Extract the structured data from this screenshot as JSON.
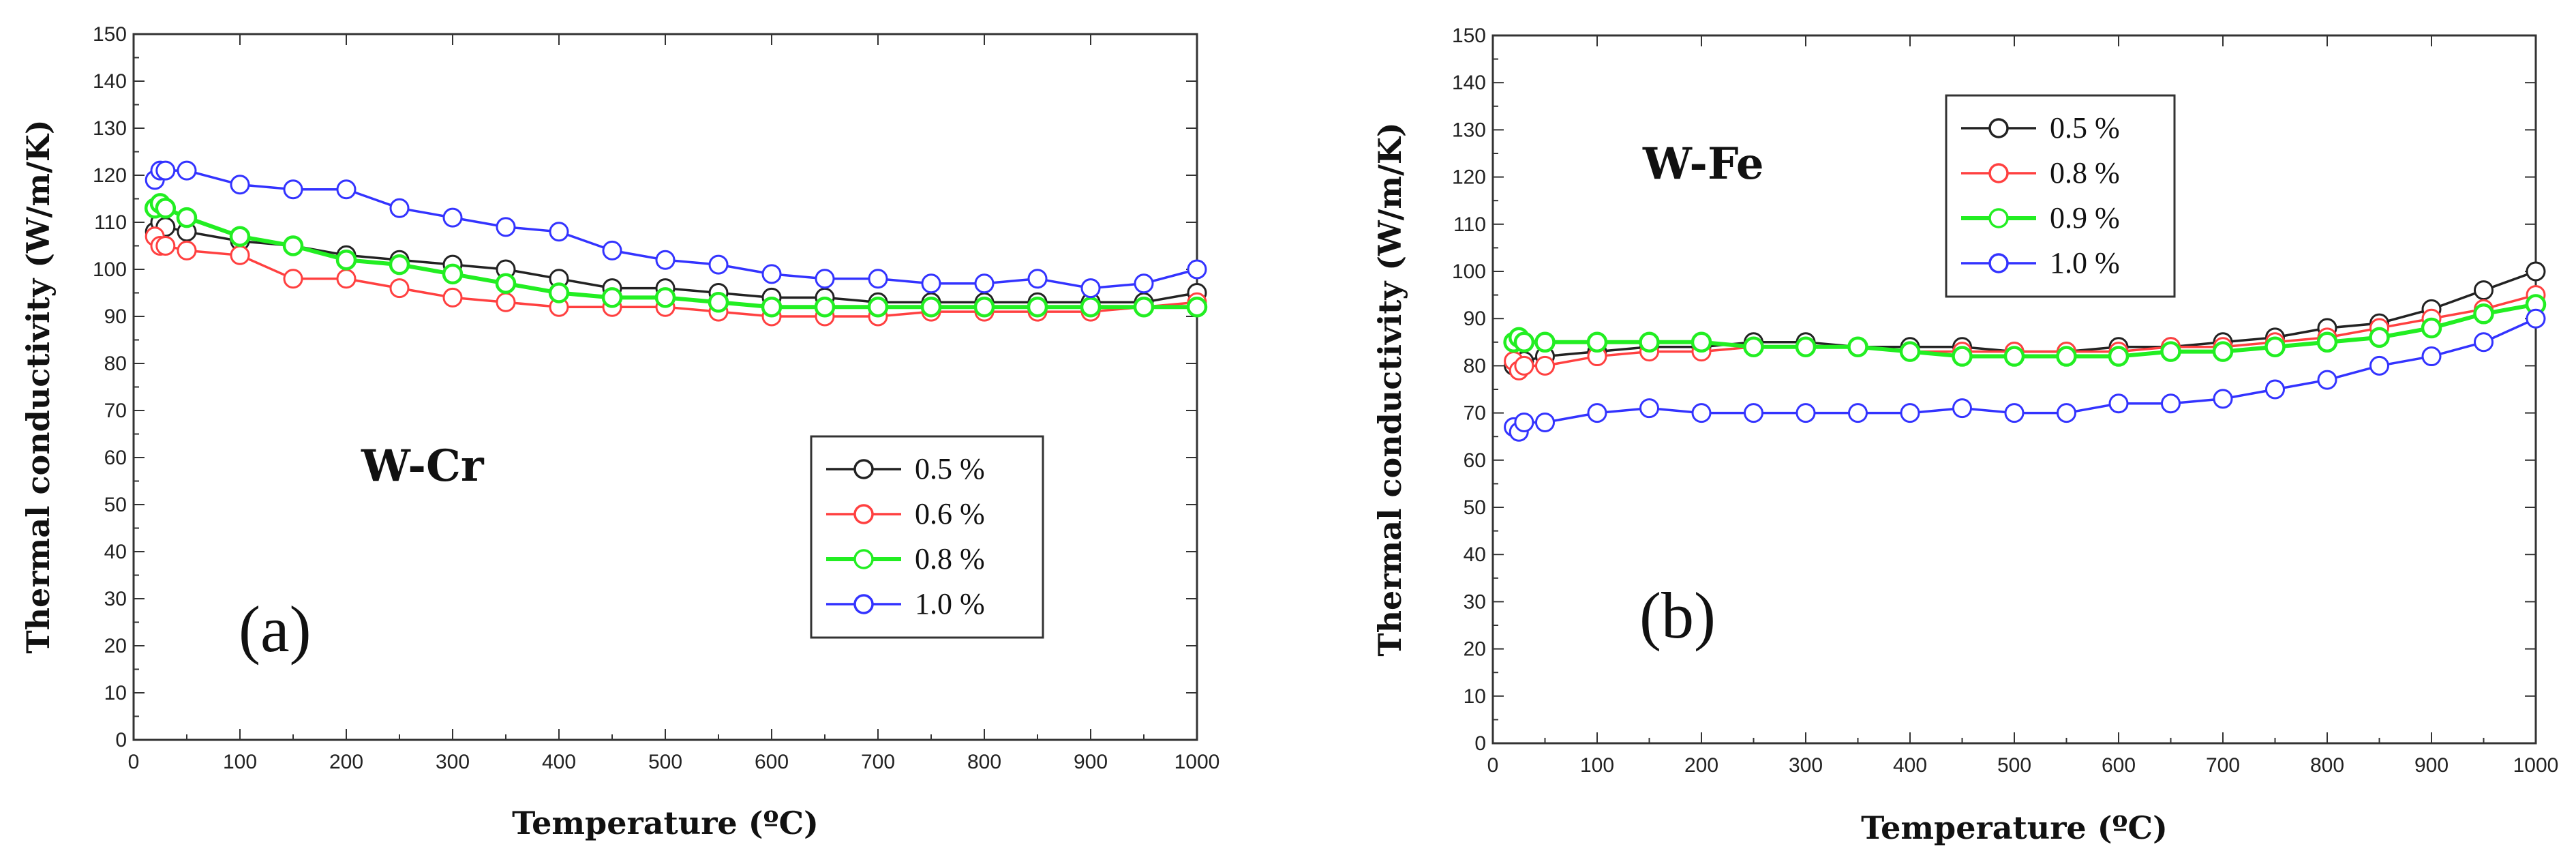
{
  "chart_data": [
    {
      "type": "line",
      "panel_label": "(a)",
      "alloy_label": "W-Cr",
      "xlabel": "Temperature (ºC)",
      "ylabel": "Thermal conductivity (W/m/K)",
      "xlim": [
        0,
        1000
      ],
      "ylim": [
        0,
        150
      ],
      "xticks": [
        "0",
        "100",
        "200",
        "300",
        "400",
        "500",
        "600",
        "700",
        "800",
        "900",
        "1000"
      ],
      "yticks": [
        "0",
        "10",
        "20",
        "30",
        "40",
        "50",
        "60",
        "70",
        "80",
        "90",
        "100",
        "110",
        "120",
        "130",
        "140",
        "150"
      ],
      "legend_position": "center-right",
      "series": [
        {
          "name": "0.5 %",
          "color": "#222222",
          "x": [
            20,
            25,
            30,
            50,
            100,
            150,
            200,
            250,
            300,
            350,
            400,
            450,
            500,
            550,
            600,
            650,
            700,
            750,
            800,
            850,
            900,
            950,
            1000
          ],
          "y": [
            108,
            110,
            109,
            108,
            106,
            105,
            103,
            102,
            101,
            100,
            98,
            96,
            96,
            95,
            94,
            94,
            93,
            93,
            93,
            93,
            93,
            93,
            95
          ]
        },
        {
          "name": "0.6 %",
          "color": "#ff4040",
          "x": [
            20,
            25,
            30,
            50,
            100,
            150,
            200,
            250,
            300,
            350,
            400,
            450,
            500,
            550,
            600,
            650,
            700,
            750,
            800,
            850,
            900,
            950,
            1000
          ],
          "y": [
            107,
            105,
            105,
            104,
            103,
            98,
            98,
            96,
            94,
            93,
            92,
            92,
            92,
            91,
            90,
            90,
            90,
            91,
            91,
            91,
            91,
            92,
            93
          ]
        },
        {
          "name": "0.8 %",
          "color": "#22ee22",
          "x": [
            20,
            25,
            30,
            50,
            100,
            150,
            200,
            250,
            300,
            350,
            400,
            450,
            500,
            550,
            600,
            650,
            700,
            750,
            800,
            850,
            900,
            950,
            1000
          ],
          "y": [
            113,
            114,
            113,
            111,
            107,
            105,
            102,
            101,
            99,
            97,
            95,
            94,
            94,
            93,
            92,
            92,
            92,
            92,
            92,
            92,
            92,
            92,
            92
          ]
        },
        {
          "name": "1.0 %",
          "color": "#3333ff",
          "x": [
            20,
            25,
            30,
            50,
            100,
            150,
            200,
            250,
            300,
            350,
            400,
            450,
            500,
            550,
            600,
            650,
            700,
            750,
            800,
            850,
            900,
            950,
            1000
          ],
          "y": [
            119,
            121,
            121,
            121,
            118,
            117,
            117,
            113,
            111,
            109,
            108,
            104,
            102,
            101,
            99,
            98,
            98,
            97,
            97,
            98,
            96,
            97,
            100
          ]
        }
      ]
    },
    {
      "type": "line",
      "panel_label": "(b)",
      "alloy_label": "W-Fe",
      "xlabel": "Temperature (ºC)",
      "ylabel": "Thermal conductivity (W/m/K)",
      "xlim": [
        0,
        1000
      ],
      "ylim": [
        0,
        150
      ],
      "xticks": [
        "0",
        "100",
        "200",
        "300",
        "400",
        "500",
        "600",
        "700",
        "800",
        "900",
        "1000"
      ],
      "yticks": [
        "0",
        "10",
        "20",
        "30",
        "40",
        "50",
        "60",
        "70",
        "80",
        "90",
        "100",
        "110",
        "120",
        "130",
        "140",
        "150"
      ],
      "legend_position": "top-center",
      "series": [
        {
          "name": "0.5 %",
          "color": "#222222",
          "x": [
            20,
            25,
            30,
            50,
            100,
            150,
            200,
            250,
            300,
            350,
            400,
            450,
            500,
            550,
            600,
            650,
            700,
            750,
            800,
            850,
            900,
            950,
            1000
          ],
          "y": [
            80,
            80,
            81,
            82,
            83,
            84,
            84,
            85,
            85,
            84,
            84,
            84,
            83,
            83,
            84,
            84,
            85,
            86,
            88,
            89,
            92,
            96,
            100
          ]
        },
        {
          "name": "0.8 %",
          "color": "#ff4040",
          "x": [
            20,
            25,
            30,
            50,
            100,
            150,
            200,
            250,
            300,
            350,
            400,
            450,
            500,
            550,
            600,
            650,
            700,
            750,
            800,
            850,
            900,
            950,
            1000
          ],
          "y": [
            81,
            79,
            80,
            80,
            82,
            83,
            83,
            84,
            84,
            84,
            83,
            83,
            83,
            83,
            83,
            84,
            84,
            85,
            86,
            88,
            90,
            92,
            95
          ]
        },
        {
          "name": "0.9 %",
          "color": "#22ee22",
          "x": [
            20,
            25,
            30,
            50,
            100,
            150,
            200,
            250,
            300,
            350,
            400,
            450,
            500,
            550,
            600,
            650,
            700,
            750,
            800,
            850,
            900,
            950,
            1000
          ],
          "y": [
            85,
            86,
            85,
            85,
            85,
            85,
            85,
            84,
            84,
            84,
            83,
            82,
            82,
            82,
            82,
            83,
            83,
            84,
            85,
            86,
            88,
            91,
            93
          ]
        },
        {
          "name": "1.0 %",
          "color": "#3333ff",
          "x": [
            20,
            25,
            30,
            50,
            100,
            150,
            200,
            250,
            300,
            350,
            400,
            450,
            500,
            550,
            600,
            650,
            700,
            750,
            800,
            850,
            900,
            950,
            1000
          ],
          "y": [
            67,
            66,
            68,
            68,
            70,
            71,
            70,
            70,
            70,
            70,
            70,
            71,
            70,
            70,
            72,
            72,
            73,
            75,
            77,
            80,
            82,
            85,
            90
          ]
        }
      ]
    }
  ]
}
